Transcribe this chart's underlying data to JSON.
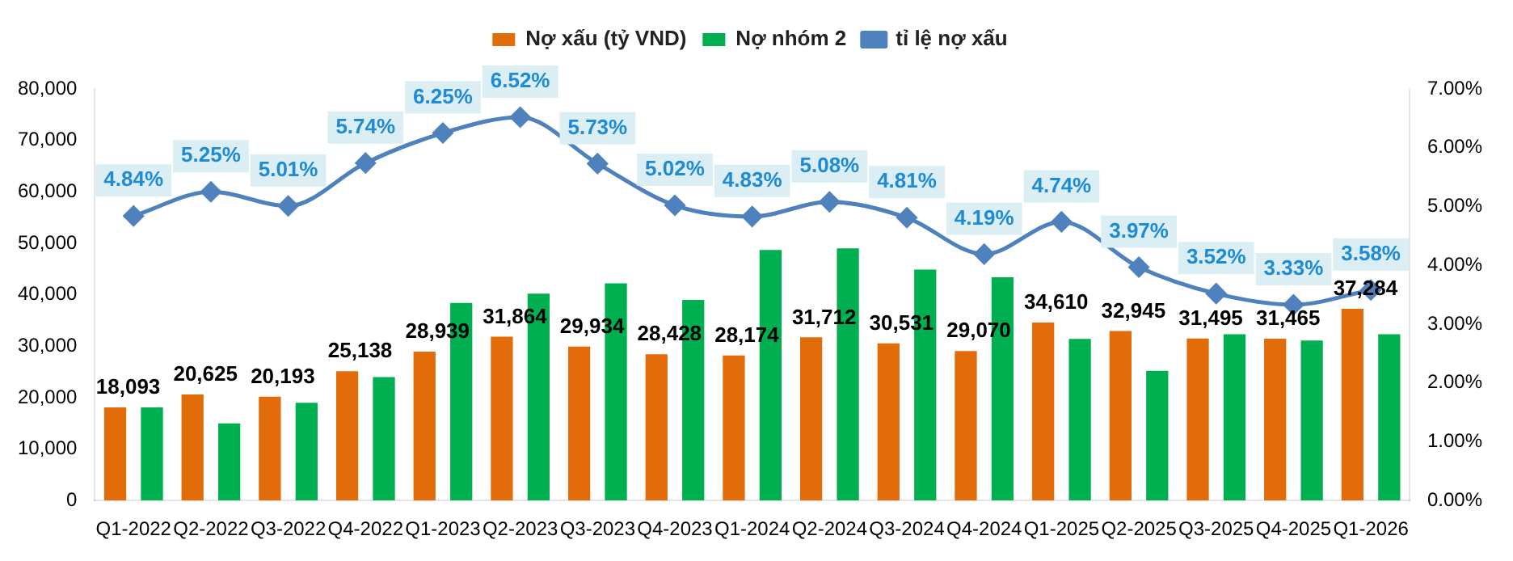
{
  "chart_data": {
    "type": "bar",
    "categories": [
      "Q1-2022",
      "Q2-2022",
      "Q3-2022",
      "Q4-2022",
      "Q1-2023",
      "Q2-2023",
      "Q3-2023",
      "Q4-2023",
      "Q1-2024",
      "Q2-2024",
      "Q3-2024",
      "Q4-2024",
      "Q1-2025",
      "Q2-2025",
      "Q3-2025",
      "Q4-2025",
      "Q1-2026"
    ],
    "series": [
      {
        "name": "Nợ xấu (tỷ VND)",
        "color": "#e36c0a",
        "values": [
          18093,
          20625,
          20193,
          25138,
          28939,
          31864,
          29934,
          28428,
          28174,
          31712,
          30531,
          29070,
          34610,
          32945,
          31495,
          31465,
          37284
        ],
        "value_labels": [
          "18,093",
          "20,625",
          "20,193",
          "25,138",
          "28,939",
          "31,864",
          "29,934",
          "28,428",
          "28,174",
          "31,712",
          "30,531",
          "29,070",
          "34,610",
          "32,945",
          "31,495",
          "31,465",
          "37,284"
        ]
      },
      {
        "name": "Nợ nhóm 2",
        "color": "#00b050",
        "values": [
          18100,
          15000,
          19000,
          24000,
          38400,
          40200,
          42200,
          39000,
          48700,
          49000,
          44900,
          43400,
          31400,
          25200,
          32300,
          31100,
          32300
        ]
      },
      {
        "name": "tỉ lệ nợ xấu",
        "type": "line",
        "axis": "y2",
        "color": "#4f81bd",
        "marker": "diamond",
        "values": [
          4.84,
          5.25,
          5.01,
          5.74,
          6.25,
          6.52,
          5.73,
          5.02,
          4.83,
          5.08,
          4.81,
          4.19,
          4.74,
          3.97,
          3.52,
          3.33,
          3.58
        ],
        "value_labels": [
          "4.84%",
          "5.25%",
          "5.01%",
          "5.74%",
          "6.25%",
          "6.52%",
          "5.73%",
          "5.02%",
          "4.83%",
          "5.08%",
          "4.81%",
          "4.19%",
          "4.74%",
          "3.97%",
          "3.52%",
          "3.33%",
          "3.58%"
        ]
      }
    ],
    "ylim": [
      0,
      80000
    ],
    "yticks": [
      {
        "value": 0,
        "label": "0"
      },
      {
        "value": 10000,
        "label": "10,000"
      },
      {
        "value": 20000,
        "label": "20,000"
      },
      {
        "value": 30000,
        "label": "30,000"
      },
      {
        "value": 40000,
        "label": "40,000"
      },
      {
        "value": 50000,
        "label": "50,000"
      },
      {
        "value": 60000,
        "label": "60,000"
      },
      {
        "value": 70000,
        "label": "70,000"
      },
      {
        "value": 80000,
        "label": "80,000"
      }
    ],
    "y2lim": [
      0,
      7
    ],
    "y2ticks": [
      {
        "value": 0,
        "label": "0.00%"
      },
      {
        "value": 1,
        "label": "1.00%"
      },
      {
        "value": 2,
        "label": "2.00%"
      },
      {
        "value": 3,
        "label": "3.00%"
      },
      {
        "value": 4,
        "label": "4.00%"
      },
      {
        "value": 5,
        "label": "5.00%"
      },
      {
        "value": 6,
        "label": "6.00%"
      },
      {
        "value": 7,
        "label": "7.00%"
      }
    ],
    "grid": false,
    "legend": "top"
  }
}
